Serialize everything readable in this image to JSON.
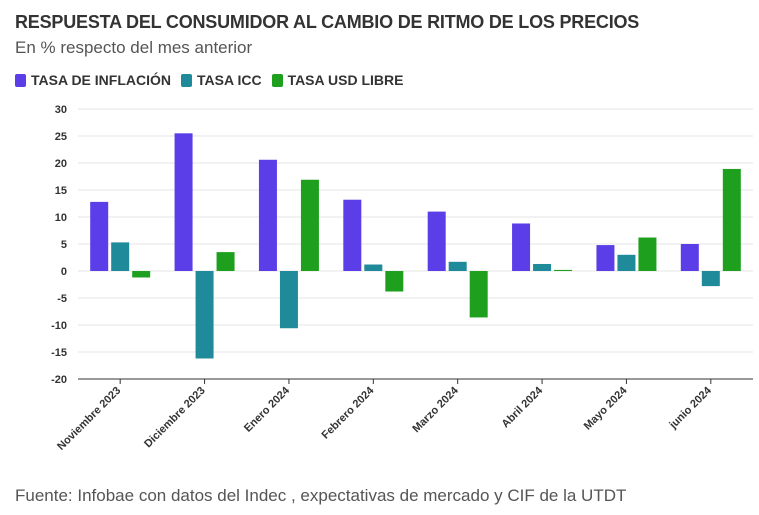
{
  "header": {
    "title": "RESPUESTA DEL CONSUMIDOR AL CAMBIO DE RITMO DE LOS PRECIOS",
    "subtitle": "En % respecto del mes anterior"
  },
  "footer": {
    "source": "Fuente: Infobae con datos del Indec , expectativas de mercado y CIF de la UTDT"
  },
  "chart_data": {
    "type": "bar",
    "categories": [
      "Noviembre 2023",
      "Diciembre 2023",
      "Enero 2024",
      "Febrero 2024",
      "Marzo 2024",
      "Abril 2024",
      "Mayo 2024",
      "junio 2024"
    ],
    "series": [
      {
        "name": "TASA DE INFLACIÓN",
        "color": "#5b3ee8",
        "values": [
          12.8,
          25.5,
          20.6,
          13.2,
          11.0,
          8.8,
          4.8,
          5.0
        ]
      },
      {
        "name": "TASA ICC",
        "color": "#1f8a9a",
        "values": [
          5.3,
          -16.2,
          -10.6,
          1.2,
          1.7,
          1.3,
          3.0,
          -2.8
        ]
      },
      {
        "name": "TASA USD LIBRE",
        "color": "#1ea01e",
        "values": [
          -1.2,
          3.5,
          16.9,
          -3.8,
          -8.6,
          0.2,
          6.2,
          18.9
        ]
      }
    ],
    "yticks": [
      "30",
      "25",
      "20",
      "15",
      "10",
      "5",
      "0",
      "-5",
      "-10",
      "-15",
      "-20"
    ],
    "ylim": [
      -20,
      30
    ],
    "grid": true,
    "legend_position": "top-left"
  }
}
